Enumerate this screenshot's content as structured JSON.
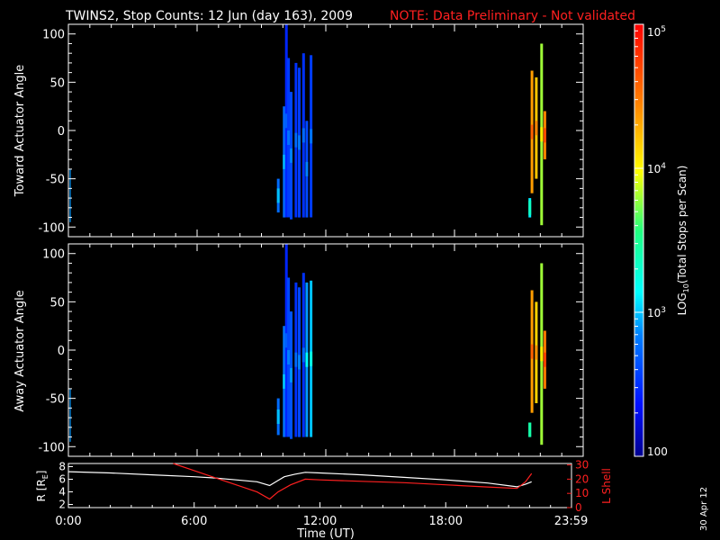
{
  "title": {
    "main": "TWINS2, Stop Counts: 12 Jun (day 163), 2009",
    "note": "NOTE: Data Preliminary - Not validated"
  },
  "colors": {
    "note": "#ff2020",
    "lshell": "#ff2020",
    "rline": "#ffffff"
  },
  "datestamp": "30 Apr 12",
  "chart_data": [
    {
      "type": "heatmap",
      "panel": "toward",
      "ylabel": "Toward Actuator Angle",
      "yticks": [
        "100",
        "50",
        "0",
        "-50",
        "-100"
      ],
      "ylim": [
        -110,
        110
      ],
      "xlim_hours": [
        0,
        24
      ],
      "color_scale": "log10",
      "bursts": [
        {
          "t": 9.72,
          "ymin": -85,
          "ymax": -50,
          "log": 2.75
        },
        {
          "t": 10.0,
          "ymin": -90,
          "ymax": 25,
          "log": 2.75
        },
        {
          "t": 10.1,
          "ymin": -90,
          "ymax": 110,
          "log": 2.45
        },
        {
          "t": 10.2,
          "ymin": -90,
          "ymax": 75,
          "log": 2.55
        },
        {
          "t": 10.32,
          "ymin": -92,
          "ymax": 40,
          "log": 2.6
        },
        {
          "t": 10.55,
          "ymin": -90,
          "ymax": 70,
          "log": 2.5
        },
        {
          "t": 10.7,
          "ymin": -90,
          "ymax": 65,
          "log": 2.55
        },
        {
          "t": 10.9,
          "ymin": -90,
          "ymax": 80,
          "log": 2.5
        },
        {
          "t": 11.05,
          "ymin": -90,
          "ymax": 10,
          "log": 2.6
        },
        {
          "t": 11.25,
          "ymin": -90,
          "ymax": 78,
          "log": 2.55
        },
        {
          "t": 21.45,
          "ymin": -90,
          "ymax": -70,
          "log": 3.1
        },
        {
          "t": 21.55,
          "ymin": -65,
          "ymax": 62,
          "log": 4.35
        },
        {
          "t": 21.75,
          "ymin": -50,
          "ymax": 55,
          "log": 4.2
        },
        {
          "t": 22.0,
          "ymin": -98,
          "ymax": 90,
          "log": 3.8
        },
        {
          "t": 22.15,
          "ymin": -30,
          "ymax": 20,
          "log": 4.45
        }
      ]
    },
    {
      "type": "heatmap",
      "panel": "away",
      "ylabel": "Away Actuator Angle",
      "yticks": [
        "100",
        "50",
        "0",
        "-50",
        "-100"
      ],
      "ylim": [
        -110,
        110
      ],
      "xlim_hours": [
        0,
        24
      ],
      "color_scale": "log10",
      "bursts": [
        {
          "t": 9.72,
          "ymin": -88,
          "ymax": -50,
          "log": 2.75
        },
        {
          "t": 10.0,
          "ymin": -90,
          "ymax": 25,
          "log": 2.8
        },
        {
          "t": 10.1,
          "ymin": -90,
          "ymax": 110,
          "log": 2.45
        },
        {
          "t": 10.2,
          "ymin": -90,
          "ymax": 75,
          "log": 2.6
        },
        {
          "t": 10.32,
          "ymin": -92,
          "ymax": 40,
          "log": 2.65
        },
        {
          "t": 10.55,
          "ymin": -90,
          "ymax": 70,
          "log": 2.5
        },
        {
          "t": 10.7,
          "ymin": -90,
          "ymax": 65,
          "log": 2.6
        },
        {
          "t": 10.9,
          "ymin": -90,
          "ymax": 80,
          "log": 2.5
        },
        {
          "t": 11.05,
          "ymin": -90,
          "ymax": 70,
          "log": 2.9
        },
        {
          "t": 11.25,
          "ymin": -90,
          "ymax": 72,
          "log": 3.0
        },
        {
          "t": 21.45,
          "ymin": -90,
          "ymax": -75,
          "log": 3.2
        },
        {
          "t": 21.55,
          "ymin": -65,
          "ymax": 62,
          "log": 4.35
        },
        {
          "t": 21.75,
          "ymin": -55,
          "ymax": 50,
          "log": 4.15
        },
        {
          "t": 22.0,
          "ymin": -98,
          "ymax": 90,
          "log": 3.8
        },
        {
          "t": 22.15,
          "ymin": -40,
          "ymax": 20,
          "log": 4.5
        }
      ]
    },
    {
      "type": "line",
      "panel": "orbit",
      "ylabel_left": "R [R",
      "ylabel_left_sub": "E",
      "ylabel_left_end": "]",
      "ylabel_right": "L Shell",
      "yticks_left": [
        "8",
        "6",
        "4",
        "2"
      ],
      "ylim_left": [
        1.5,
        8.5
      ],
      "yticks_right": [
        "30",
        "20",
        "10",
        "0"
      ],
      "ylim_right": [
        0,
        31
      ],
      "xlim_hours": [
        0,
        24
      ],
      "xticks": [
        "0:00",
        "6:00",
        "12:00",
        "18:00",
        "23:59"
      ],
      "xtick_hours": [
        0,
        6,
        12,
        18,
        23.98
      ],
      "xlabel": "Time (UT)",
      "series": [
        {
          "axis": "left",
          "x": [
            0,
            2,
            4,
            6,
            7,
            8,
            9,
            9.6,
            10,
            10.3,
            10.8,
            11.3,
            12,
            14,
            16,
            18,
            20,
            21.4,
            21.8,
            22.1
          ],
          "y": [
            7.2,
            7.0,
            6.7,
            6.4,
            6.2,
            5.9,
            5.6,
            5.0,
            5.8,
            6.4,
            6.8,
            7.1,
            7.0,
            6.7,
            6.3,
            5.9,
            5.4,
            4.8,
            5.2,
            5.6
          ]
        },
        {
          "axis": "right",
          "x": [
            5.0,
            6,
            7,
            8,
            9,
            9.6,
            10,
            10.6,
            11.3,
            12,
            14,
            16,
            18,
            20,
            21.4,
            21.8,
            22.1
          ],
          "y": [
            31,
            26,
            21,
            16,
            11,
            6,
            11,
            16,
            20,
            19.5,
            18.5,
            17.5,
            16,
            14.5,
            13.5,
            18,
            24
          ]
        }
      ]
    }
  ],
  "colorbar": {
    "label_pre": "LOG",
    "label_sub": "10",
    "label_post": "(Total Stops per Scan)",
    "min_log": 2,
    "max_log": 5,
    "tick_labels": [
      {
        "text": "100",
        "kind": "plain",
        "log": 2
      },
      {
        "base": "10",
        "exp": "3",
        "kind": "pow",
        "log": 3
      },
      {
        "base": "10",
        "exp": "4",
        "kind": "pow",
        "log": 4
      },
      {
        "base": "10",
        "exp": "5",
        "kind": "pow",
        "log": 5
      }
    ]
  }
}
